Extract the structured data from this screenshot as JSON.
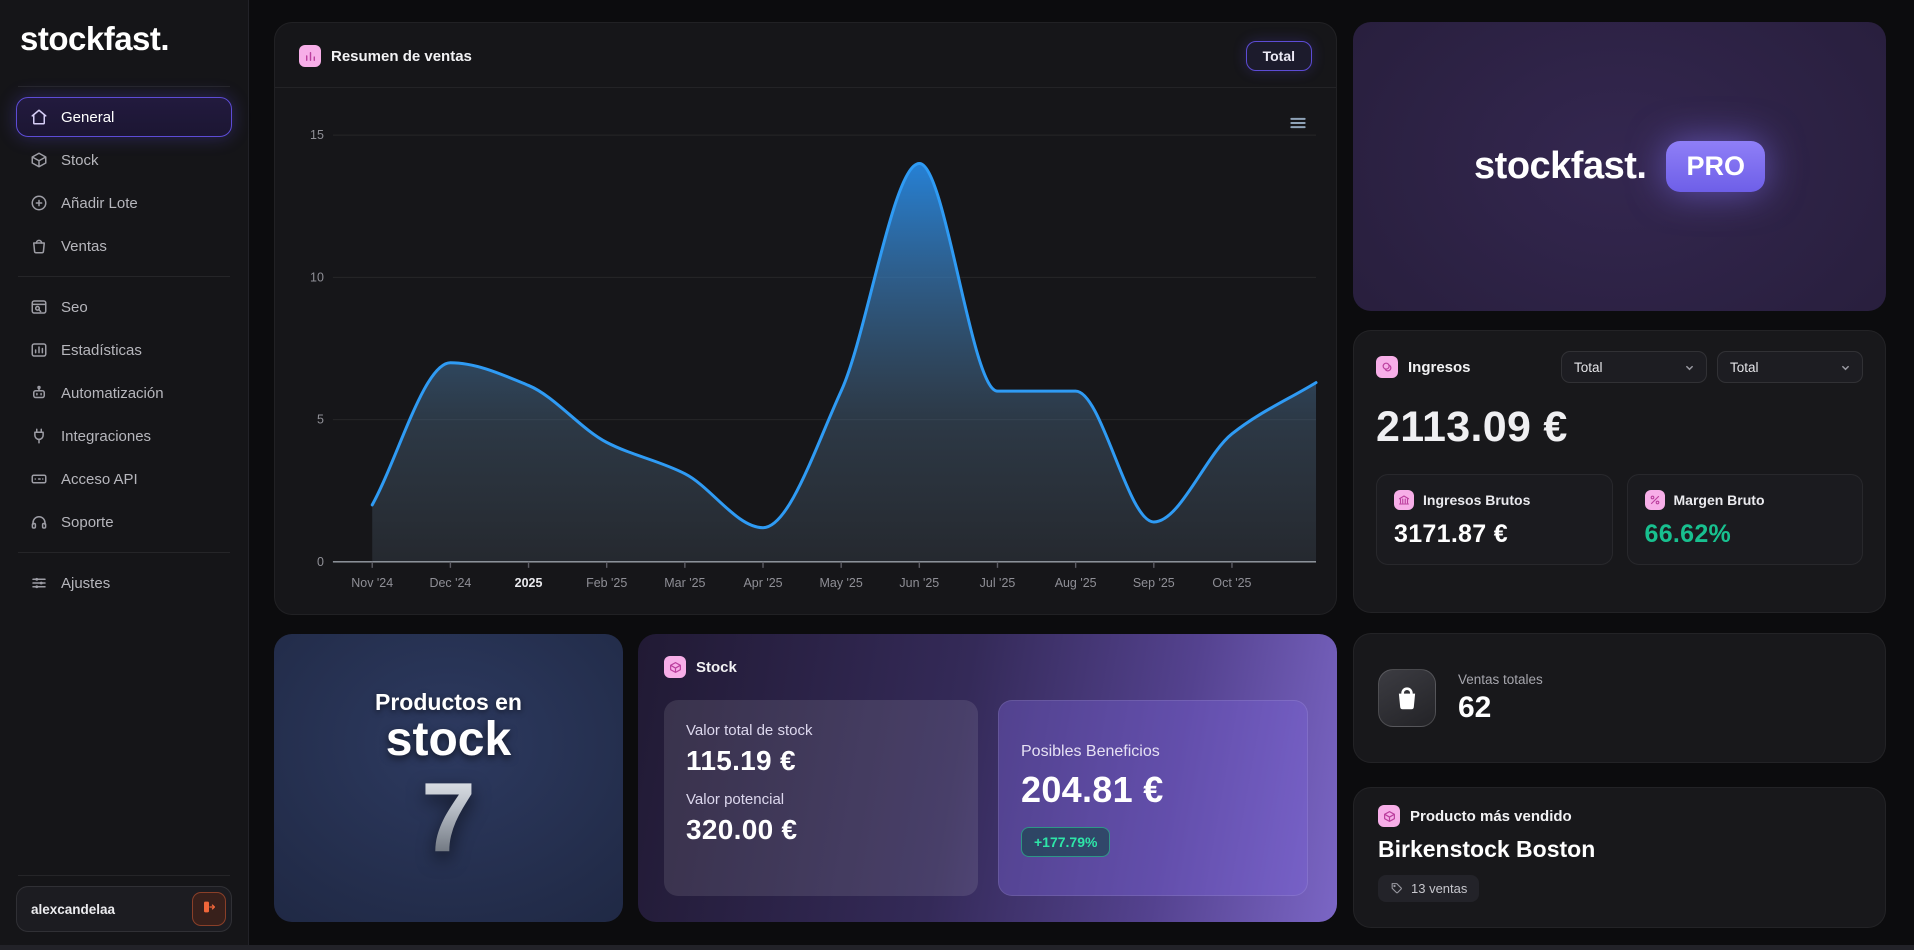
{
  "sidebar": {
    "logo": "stockfast.",
    "sections": [
      {
        "items": [
          {
            "icon": "home",
            "label": "General",
            "active": true
          },
          {
            "icon": "package",
            "label": "Stock"
          },
          {
            "icon": "plus-circle",
            "label": "Añadir Lote"
          },
          {
            "icon": "shopping-bag",
            "label": "Ventas"
          }
        ]
      },
      {
        "items": [
          {
            "icon": "browser-search",
            "label": "Seo"
          },
          {
            "icon": "chart-frame",
            "label": "Estadísticas"
          },
          {
            "icon": "bot",
            "label": "Automatización"
          },
          {
            "icon": "plug",
            "label": "Integraciones"
          },
          {
            "icon": "api-card",
            "label": "Acceso API"
          },
          {
            "icon": "headphones",
            "label": "Soporte"
          }
        ]
      },
      {
        "items": [
          {
            "icon": "sliders",
            "label": "Ajustes"
          }
        ]
      }
    ],
    "user": {
      "name": "alexcandelaa"
    }
  },
  "sales_summary": {
    "title": "Resumen de ventas",
    "range_button": "Total"
  },
  "chart_data": {
    "type": "area",
    "title": "Resumen de ventas",
    "x": [
      "Nov '24",
      "Dec '24",
      "2025",
      "Feb '25",
      "Mar '25",
      "Apr '25",
      "May '25",
      "Jun '25",
      "Jul '25",
      "Aug '25",
      "Sep '25",
      "Oct '25"
    ],
    "values": [
      2,
      7,
      6.2,
      4.2,
      3.1,
      1.2,
      6,
      14,
      6,
      6,
      1.4,
      4.5
    ],
    "trailing_value": 6.3,
    "emphasized_tick": "2025",
    "xlabel": "",
    "ylabel": "",
    "ylim": [
      0,
      15
    ],
    "yticks": [
      0,
      5,
      10,
      15
    ],
    "grid": true,
    "legend": "none",
    "line_color": "#2f9bf4"
  },
  "stock_count_card": {
    "line1": "Productos en",
    "line2": "stock",
    "value": "7"
  },
  "stock_card": {
    "title": "Stock",
    "total_label": "Valor total de stock",
    "total_value": "115.19 €",
    "potential_label": "Valor potencial",
    "potential_value": "320.00 €",
    "profit_label": "Posibles Beneficios",
    "profit_value": "204.81 €",
    "profit_delta": "+177.79%"
  },
  "pro_card": {
    "brand": "stockfast.",
    "badge": "PRO"
  },
  "income_card": {
    "title": "Ingresos",
    "filters": [
      "Total",
      "Total"
    ],
    "value": "2113.09 €",
    "gross_label": "Ingresos Brutos",
    "gross_value": "3171.87 €",
    "margin_label": "Margen Bruto",
    "margin_value": "66.62%"
  },
  "total_sales_card": {
    "label": "Ventas totales",
    "value": "62"
  },
  "best_seller_card": {
    "title": "Producto más vendido",
    "product": "Birkenstock Boston",
    "badge": "13 ventas"
  },
  "colors": {
    "accent_purple": "#5d4cd6",
    "pink_badge": "#f7aee8",
    "green": "#18c08f",
    "chart_blue": "#2f9bf4",
    "logout_orange": "#f0663a"
  }
}
